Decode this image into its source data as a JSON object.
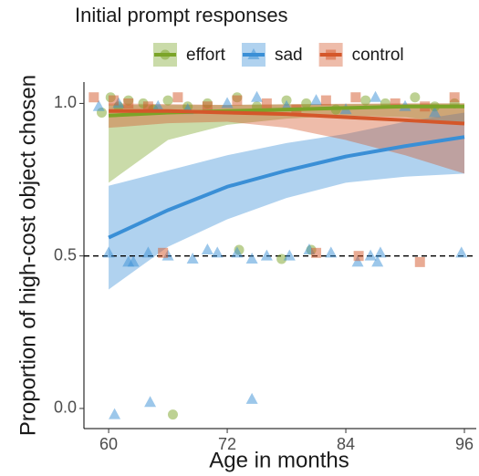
{
  "chart_data": {
    "type": "scatter",
    "legend_title": "Initial prompt responses",
    "x_label": "Age in months",
    "y_label": "Proportion of high-cost object chosen",
    "xlim": [
      57.5,
      97.2
    ],
    "ylim": [
      -0.066,
      1.07
    ],
    "xticks": [
      60,
      72,
      84,
      96
    ],
    "yticks": [
      {
        "value": 0,
        "label": "0.0"
      },
      0.5,
      {
        "value": 1,
        "label": "1.0"
      }
    ],
    "reference_line": 0.5,
    "series": [
      {
        "name": "effort",
        "color": "#7ba428",
        "marker": "circle",
        "x": [
          59.3,
          60.2,
          61,
          62,
          63.5,
          64.5,
          66,
          68,
          70,
          73,
          75,
          78,
          80,
          83,
          86,
          88,
          91,
          93,
          95,
          73.2,
          77.5,
          80.5,
          66.5
        ],
        "y": [
          0.97,
          1.02,
          0.99,
          1.01,
          1.0,
          0.98,
          1.01,
          0.99,
          1.0,
          1.02,
          0.99,
          1.01,
          1.0,
          0.98,
          1.01,
          1.0,
          1.02,
          0.99,
          1.0,
          0.52,
          0.49,
          0.52,
          -0.02
        ],
        "fit": {
          "x": [
            60,
            66,
            72,
            78,
            84,
            90,
            96
          ],
          "y": [
            0.96,
            0.97,
            0.975,
            0.98,
            0.985,
            0.99,
            0.99
          ],
          "lower": [
            0.74,
            0.88,
            0.93,
            0.95,
            0.96,
            0.955,
            0.93
          ],
          "upper": [
            0.995,
            0.995,
            0.995,
            0.997,
            0.998,
            0.999,
            1.0
          ]
        }
      },
      {
        "name": "sad",
        "color": "#3a8fd6",
        "marker": "triangle",
        "x": [
          59,
          61,
          65,
          68,
          72,
          75,
          78,
          81,
          84,
          87,
          90,
          93,
          60,
          62,
          62.5,
          64,
          66,
          68.5,
          70,
          71,
          73,
          74.5,
          76,
          78.3,
          80.3,
          82.5,
          85.2,
          86.5,
          87.2,
          87.5,
          95.7,
          60.6,
          64.2,
          74.5
        ],
        "y": [
          0.99,
          1.0,
          0.99,
          0.98,
          1.0,
          1.02,
          0.99,
          1.01,
          0.98,
          1.02,
          0.99,
          0.97,
          0.51,
          0.48,
          0.48,
          0.51,
          0.5,
          0.49,
          0.52,
          0.51,
          0.51,
          0.49,
          0.5,
          0.5,
          0.52,
          0.51,
          0.48,
          0.5,
          0.48,
          0.51,
          0.51,
          -0.02,
          0.02,
          0.03
        ],
        "fit": {
          "x": [
            60,
            66,
            72,
            78,
            84,
            90,
            96
          ],
          "y": [
            0.56,
            0.65,
            0.727,
            0.78,
            0.826,
            0.86,
            0.89
          ],
          "lower": [
            0.39,
            0.53,
            0.62,
            0.69,
            0.74,
            0.76,
            0.77
          ],
          "upper": [
            0.73,
            0.78,
            0.83,
            0.87,
            0.9,
            0.94,
            0.97
          ]
        }
      },
      {
        "name": "control",
        "color": "#d4572a",
        "marker": "square",
        "x": [
          58.5,
          60.5,
          62,
          64,
          67,
          70,
          73,
          76,
          79,
          82,
          85,
          89,
          92,
          95,
          65.5,
          81,
          85.3,
          91.5
        ],
        "y": [
          1.02,
          1.01,
          1.0,
          0.99,
          1.02,
          0.99,
          1.01,
          1.0,
          0.98,
          1.01,
          1.02,
          1.0,
          0.99,
          1.02,
          0.51,
          0.51,
          0.5,
          0.48
        ],
        "fit": {
          "x": [
            60,
            66,
            72,
            78,
            84,
            90,
            96
          ],
          "y": [
            0.975,
            0.975,
            0.97,
            0.965,
            0.955,
            0.945,
            0.934
          ],
          "lower": [
            0.92,
            0.935,
            0.94,
            0.92,
            0.88,
            0.83,
            0.77
          ],
          "upper": [
            1.0,
            0.998,
            0.995,
            0.997,
            0.999,
            1.0,
            1.0
          ]
        }
      }
    ]
  }
}
